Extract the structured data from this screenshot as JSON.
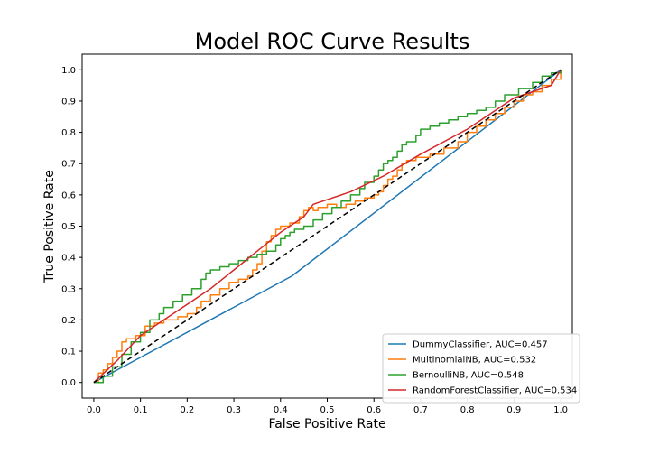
{
  "chart_data": {
    "type": "line",
    "title": "Model ROC Curve Results",
    "xlabel": "False Positive Rate",
    "ylabel": "True Positive Rate",
    "xlim": [
      -0.025,
      1.025
    ],
    "ylim": [
      -0.05,
      1.05
    ],
    "xticks": [
      0.0,
      0.1,
      0.2,
      0.3,
      0.4,
      0.5,
      0.6,
      0.7,
      0.8,
      0.9,
      1.0
    ],
    "yticks": [
      0.0,
      0.1,
      0.2,
      0.3,
      0.4,
      0.5,
      0.6,
      0.7,
      0.8,
      0.9,
      1.0
    ],
    "tick_labels": [
      "0.0",
      "0.1",
      "0.2",
      "0.3",
      "0.4",
      "0.5",
      "0.6",
      "0.7",
      "0.8",
      "0.9",
      "1.0"
    ],
    "grid": false,
    "legend_position": "lower-right",
    "series": [
      {
        "name": "DummyClassifier, AUC=0.457",
        "color": "#1f77b4",
        "step": false,
        "dashed": false,
        "x": [
          0.0,
          0.424,
          1.0
        ],
        "y": [
          0.0,
          0.34,
          1.0
        ]
      },
      {
        "name": "MultinomialNB, AUC=0.532",
        "color": "#ff7f0e",
        "step": true,
        "dashed": false,
        "x": [
          0.0,
          0.01,
          0.02,
          0.03,
          0.04,
          0.05,
          0.06,
          0.07,
          0.09,
          0.11,
          0.13,
          0.15,
          0.18,
          0.2,
          0.22,
          0.23,
          0.25,
          0.27,
          0.29,
          0.31,
          0.33,
          0.34,
          0.35,
          0.36,
          0.37,
          0.38,
          0.39,
          0.4,
          0.42,
          0.44,
          0.45,
          0.46,
          0.47,
          0.48,
          0.5,
          0.52,
          0.54,
          0.56,
          0.58,
          0.6,
          0.61,
          0.62,
          0.63,
          0.64,
          0.65,
          0.66,
          0.67,
          0.69,
          0.72,
          0.75,
          0.78,
          0.8,
          0.82,
          0.84,
          0.86,
          0.88,
          0.9,
          0.92,
          0.94,
          0.96,
          0.98,
          1.0
        ],
        "y": [
          0.0,
          0.03,
          0.04,
          0.06,
          0.08,
          0.1,
          0.13,
          0.14,
          0.15,
          0.18,
          0.19,
          0.2,
          0.21,
          0.22,
          0.24,
          0.26,
          0.28,
          0.3,
          0.32,
          0.33,
          0.34,
          0.36,
          0.38,
          0.42,
          0.45,
          0.47,
          0.49,
          0.5,
          0.51,
          0.53,
          0.55,
          0.56,
          0.55,
          0.56,
          0.57,
          0.56,
          0.57,
          0.58,
          0.59,
          0.6,
          0.61,
          0.63,
          0.65,
          0.66,
          0.68,
          0.7,
          0.71,
          0.72,
          0.73,
          0.75,
          0.77,
          0.8,
          0.82,
          0.84,
          0.86,
          0.88,
          0.9,
          0.92,
          0.93,
          0.95,
          0.97,
          1.0
        ]
      },
      {
        "name": "BernoulliNB, AUC=0.548",
        "color": "#2ca02c",
        "step": true,
        "dashed": false,
        "x": [
          0.0,
          0.02,
          0.04,
          0.06,
          0.08,
          0.1,
          0.12,
          0.14,
          0.15,
          0.17,
          0.19,
          0.21,
          0.23,
          0.24,
          0.25,
          0.27,
          0.29,
          0.31,
          0.33,
          0.35,
          0.37,
          0.39,
          0.4,
          0.41,
          0.42,
          0.43,
          0.45,
          0.47,
          0.49,
          0.51,
          0.53,
          0.55,
          0.57,
          0.58,
          0.6,
          0.61,
          0.62,
          0.63,
          0.64,
          0.65,
          0.66,
          0.67,
          0.69,
          0.7,
          0.72,
          0.74,
          0.76,
          0.78,
          0.8,
          0.82,
          0.84,
          0.86,
          0.88,
          0.91,
          0.94,
          0.96,
          0.98,
          1.0
        ],
        "y": [
          0.0,
          0.02,
          0.05,
          0.09,
          0.13,
          0.16,
          0.2,
          0.22,
          0.24,
          0.26,
          0.28,
          0.3,
          0.33,
          0.35,
          0.36,
          0.37,
          0.38,
          0.39,
          0.4,
          0.41,
          0.42,
          0.44,
          0.46,
          0.47,
          0.48,
          0.49,
          0.5,
          0.52,
          0.54,
          0.56,
          0.58,
          0.6,
          0.62,
          0.64,
          0.66,
          0.68,
          0.7,
          0.71,
          0.72,
          0.74,
          0.76,
          0.77,
          0.79,
          0.81,
          0.82,
          0.83,
          0.84,
          0.85,
          0.86,
          0.87,
          0.88,
          0.9,
          0.92,
          0.94,
          0.96,
          0.98,
          0.99,
          1.0
        ]
      },
      {
        "name": "RandomForestClassifier, AUC=0.534",
        "color": "#d62728",
        "step": false,
        "dashed": false,
        "x": [
          0.0,
          0.05,
          0.1,
          0.15,
          0.2,
          0.25,
          0.3,
          0.35,
          0.4,
          0.45,
          0.47,
          0.55,
          0.62,
          0.7,
          0.8,
          0.9,
          0.98,
          1.0
        ],
        "y": [
          0.0,
          0.07,
          0.15,
          0.2,
          0.25,
          0.3,
          0.36,
          0.42,
          0.48,
          0.53,
          0.57,
          0.61,
          0.66,
          0.73,
          0.81,
          0.91,
          0.95,
          1.0
        ]
      },
      {
        "color": "#000000",
        "step": false,
        "dashed": true,
        "x": [
          0.0,
          1.0
        ],
        "y": [
          0.0,
          1.0
        ]
      }
    ]
  }
}
